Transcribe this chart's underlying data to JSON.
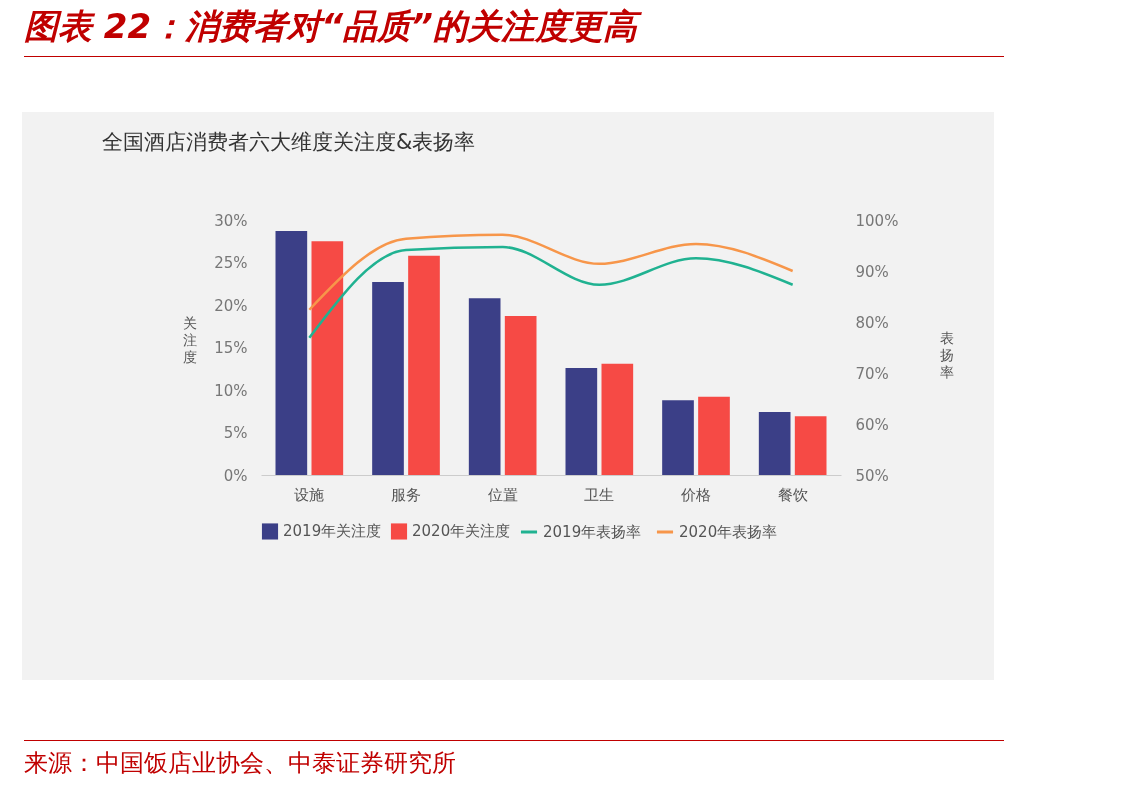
{
  "chart_data": {
    "type": "bar",
    "title": "图表 22：消费者对“品质”的关注度更高",
    "subtitle": "全国酒店消费者六大维度关注度&表扬率",
    "ylabel": "关注度",
    "y2label": "表扬率",
    "categories": [
      "设施",
      "服务",
      "位置",
      "卫生",
      "价格",
      "餐饮"
    ],
    "series": [
      {
        "name": "2019年关注度",
        "color": "#3b3f87",
        "values": [
          28.7,
          22.7,
          20.8,
          12.6,
          8.8,
          7.4
        ]
      },
      {
        "name": "2020年关注度",
        "color": "#f64a45",
        "values": [
          27.5,
          25.8,
          18.7,
          13.1,
          9.2,
          6.9
        ]
      },
      {
        "name": "2019年表扬率",
        "type": "line",
        "axis": "y2",
        "color": "#20b291",
        "values": [
          76.9,
          94.1,
          94.7,
          87.3,
          92.5,
          87.3
        ]
      },
      {
        "name": "2020年表扬率",
        "type": "line",
        "axis": "y2",
        "color": "#f7964a",
        "values": [
          82.4,
          96.3,
          97.1,
          91.4,
          95.3,
          90.0
        ]
      }
    ],
    "ylim": [
      0,
      30
    ],
    "yticks": [
      {
        "value": 0,
        "label": "0%"
      },
      {
        "value": 5,
        "label": "5%"
      },
      {
        "value": 10,
        "label": "10%"
      },
      {
        "value": 15,
        "label": "15%"
      },
      {
        "value": 20,
        "label": "20%"
      },
      {
        "value": 25,
        "label": "25%"
      },
      {
        "value": 30,
        "label": "30%"
      }
    ],
    "y2lim": [
      50,
      100
    ],
    "y2ticks": [
      {
        "value": 50,
        "label": "50%"
      },
      {
        "value": 60,
        "label": "60%"
      },
      {
        "value": 70,
        "label": "70%"
      },
      {
        "value": 80,
        "label": "80%"
      },
      {
        "value": 90,
        "label": "90%"
      },
      {
        "value": 100,
        "label": "100%"
      }
    ],
    "grid": false,
    "legend": "bottom",
    "annotations": [
      "来源：中国饭店业协会、中泰证券研究所"
    ]
  }
}
